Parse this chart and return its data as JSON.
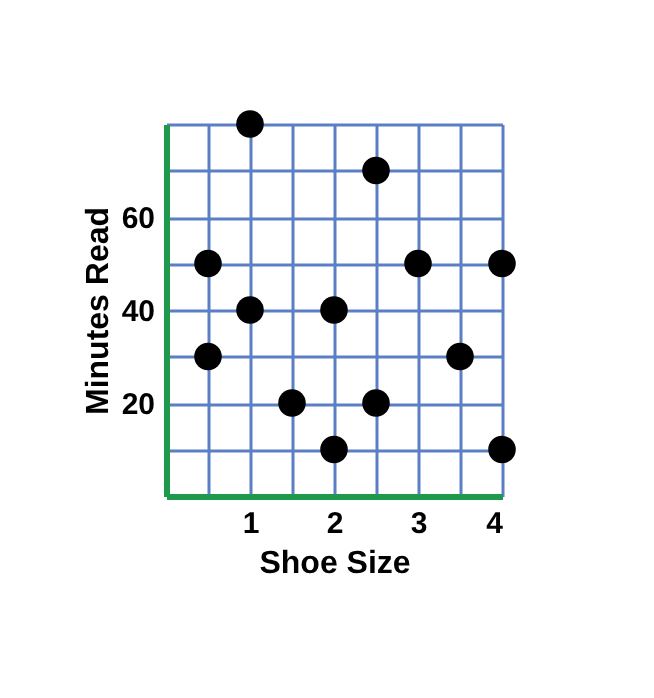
{
  "chart_data": {
    "type": "scatter",
    "xlabel": "Shoe Size",
    "ylabel": "Minutes Read",
    "x": [
      0.5,
      0.5,
      1,
      1,
      1.5,
      2,
      2,
      2.5,
      2.5,
      3,
      3.5,
      4,
      4
    ],
    "series": [
      {
        "color": "#000000",
        "values": [
          50,
          30,
          80,
          40,
          20,
          40,
          10,
          70,
          20,
          50,
          30,
          50,
          10
        ]
      }
    ],
    "xlim": [
      0,
      4
    ],
    "ylim": [
      0,
      80
    ],
    "xticks": [
      {
        "value": 0.5,
        "label": null
      },
      1,
      {
        "value": 1.5,
        "label": null
      },
      2,
      {
        "value": 2.5,
        "label": null
      },
      3,
      {
        "value": 3.5,
        "label": null
      },
      4
    ],
    "yticks": [
      {
        "value": 10,
        "label": null
      },
      20,
      {
        "value": 30,
        "label": null
      },
      40,
      {
        "value": 50,
        "label": null
      },
      60,
      {
        "value": 70,
        "label": null
      },
      {
        "value": 80,
        "label": null
      }
    ],
    "grid": true,
    "marker": "circle"
  }
}
